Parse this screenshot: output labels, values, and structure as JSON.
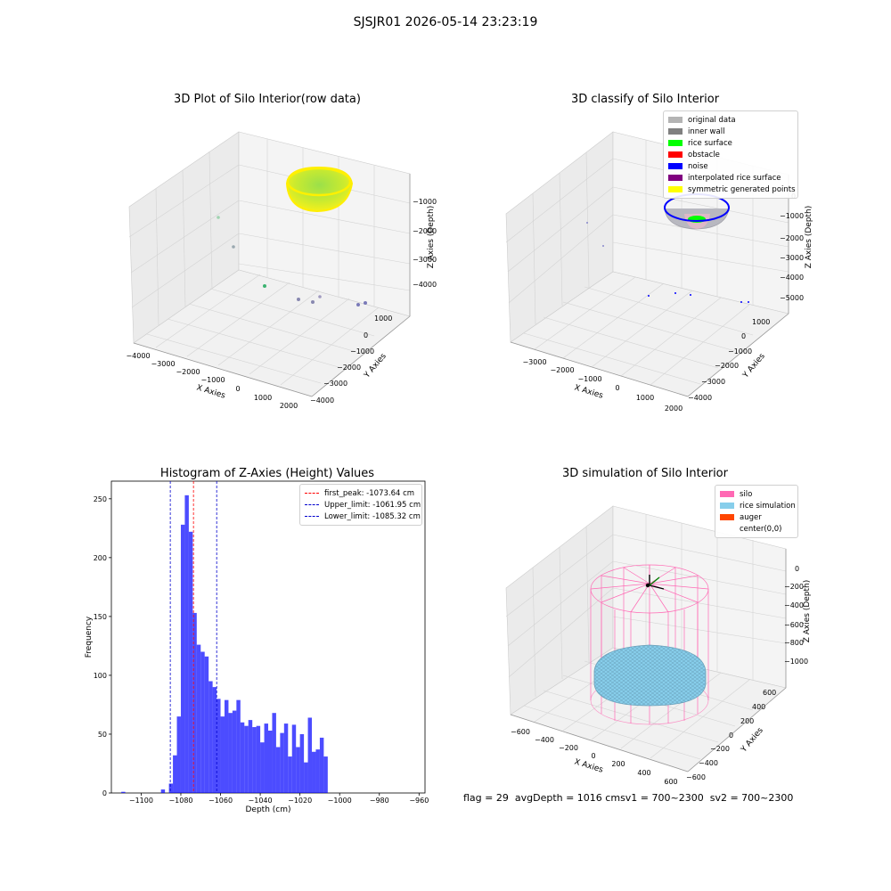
{
  "suptitle": "SJSJR01 2026-05-14 23:23:19",
  "panels": {
    "raw": {
      "title": "3D Plot of Silo Interior(row data)",
      "xlabel": "X Axies",
      "ylabel": "Y Axies",
      "zlabel": "Z Axies (Depth)",
      "xticks": [
        "−4000",
        "−3000",
        "−2000",
        "−1000",
        "0",
        "1000",
        "2000"
      ],
      "yticks": [
        "1000",
        "0",
        "−1000",
        "−2000",
        "−3000",
        "−4000"
      ],
      "zticks": [
        "−1000",
        "−2000",
        "−3000",
        "−4000"
      ]
    },
    "classify": {
      "title": "3D classify of Silo Interior",
      "xlabel": "X Axies",
      "ylabel": "Y Axies",
      "zlabel": "Z Axies (Depth)",
      "xticks": [
        "−3000",
        "−2000",
        "−1000",
        "0",
        "1000",
        "2000"
      ],
      "yticks": [
        "1000",
        "0",
        "−1000",
        "−2000",
        "−3000",
        "−4000"
      ],
      "zticks": [
        "0",
        "−1000",
        "−2000",
        "−3000",
        "−4000",
        "−5000"
      ],
      "legend": [
        {
          "label": "original data",
          "color": "#b4b4b4"
        },
        {
          "label": "inner wall",
          "color": "#808080"
        },
        {
          "label": "rice surface",
          "color": "#00ff00"
        },
        {
          "label": "obstacle",
          "color": "#ff0000"
        },
        {
          "label": "noise",
          "color": "#0000ff"
        },
        {
          "label": "interpolated rice surface",
          "color": "#800080"
        },
        {
          "label": "symmetric generated points",
          "color": "#ffff00"
        }
      ]
    },
    "simulation": {
      "title": "3D simulation of Silo Interior",
      "xlabel": "X Axies",
      "ylabel": "Y Axies",
      "zlabel": "Z Axies (Depth)",
      "xticks": [
        "−600",
        "−400",
        "−200",
        "0",
        "200",
        "400",
        "600"
      ],
      "yticks": [
        "600",
        "400",
        "200",
        "0",
        "−200",
        "−400",
        "−600"
      ],
      "zticks": [
        "0",
        "−200",
        "−400",
        "−600",
        "−800",
        "−1000"
      ],
      "legend": [
        {
          "label": "silo",
          "color": "#ff69b4"
        },
        {
          "label": "rice simulation",
          "color": "#87ceeb"
        },
        {
          "label": "auger",
          "color": "#ff4500"
        },
        {
          "label": "center(0,0)",
          "color": ""
        }
      ]
    }
  },
  "chart_data": [
    {
      "type": "bar",
      "title": "Histogram of Z-Axies (Height) Values",
      "xlabel": "Depth (cm)",
      "ylabel": "Frequency",
      "xlim": [
        -1115,
        -957
      ],
      "ylim": [
        0,
        265
      ],
      "xticks": [
        -1100,
        -1080,
        -1060,
        -1040,
        -1020,
        -1000,
        -980,
        -960
      ],
      "yticks": [
        0,
        50,
        100,
        150,
        200,
        250
      ],
      "bin_start": -1110,
      "bin_width": 2,
      "values": [
        1,
        0,
        0,
        0,
        0,
        0,
        0,
        0,
        0,
        0,
        3,
        0,
        8,
        32,
        65,
        228,
        253,
        222,
        153,
        126,
        120,
        116,
        95,
        90,
        80,
        65,
        79,
        68,
        70,
        79,
        60,
        57,
        62,
        56,
        57,
        43,
        59,
        53,
        68,
        39,
        51,
        59,
        31,
        58,
        39,
        50,
        26,
        64,
        35,
        37,
        47,
        31
      ],
      "color": "#0000ff",
      "lines": [
        {
          "label": "first_peak: -1073.64 cm",
          "value": -1073.64,
          "color": "#ff0000"
        },
        {
          "label": "Upper_limit: -1061.95 cm",
          "value": -1061.95,
          "color": "#0000cd"
        },
        {
          "label": "Lower_limit: -1085.32 cm",
          "value": -1085.32,
          "color": "#0000cd"
        }
      ],
      "legend_position": "top-right"
    }
  ],
  "status": {
    "flag": "flag = 29",
    "avg": "avgDepth = 1016 cm",
    "sv1": "sv1 = 700~2300",
    "sv2": "sv2 = 700~2300"
  }
}
